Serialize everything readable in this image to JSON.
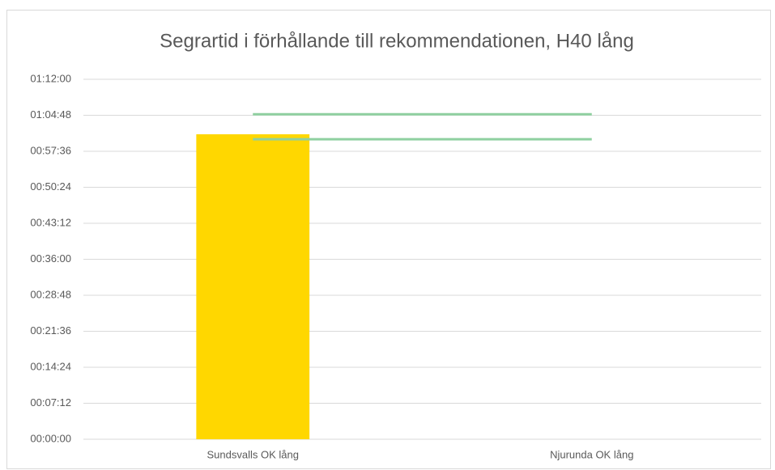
{
  "chart_data": {
    "type": "bar",
    "title": "Segrartid i förhållande till rekommendationen, H40 lång",
    "categories": [
      "Sundsvalls OK lång",
      "Njurunda OK lång"
    ],
    "series": [
      {
        "type": "bar",
        "color": "#ffd700",
        "values": [
          3660,
          null
        ]
      },
      {
        "type": "line",
        "color": "#8fd0a0",
        "values": [
          3900,
          3900
        ]
      },
      {
        "type": "line",
        "color": "#8fd0a0",
        "values": [
          3600,
          3600
        ]
      }
    ],
    "ylim": [
      0,
      4320
    ],
    "yticks": [
      {
        "value": 0,
        "label": "00:00:00"
      },
      {
        "value": 432,
        "label": "00:07:12"
      },
      {
        "value": 864,
        "label": "00:14:24"
      },
      {
        "value": 1296,
        "label": "00:21:36"
      },
      {
        "value": 1728,
        "label": "00:28:48"
      },
      {
        "value": 2160,
        "label": "00:36:00"
      },
      {
        "value": 2592,
        "label": "00:43:12"
      },
      {
        "value": 3024,
        "label": "00:50:24"
      },
      {
        "value": 3456,
        "label": "00:57:36"
      },
      {
        "value": 3888,
        "label": "01:04:48"
      },
      {
        "value": 4320,
        "label": "01:12:00"
      }
    ],
    "grid": true
  }
}
